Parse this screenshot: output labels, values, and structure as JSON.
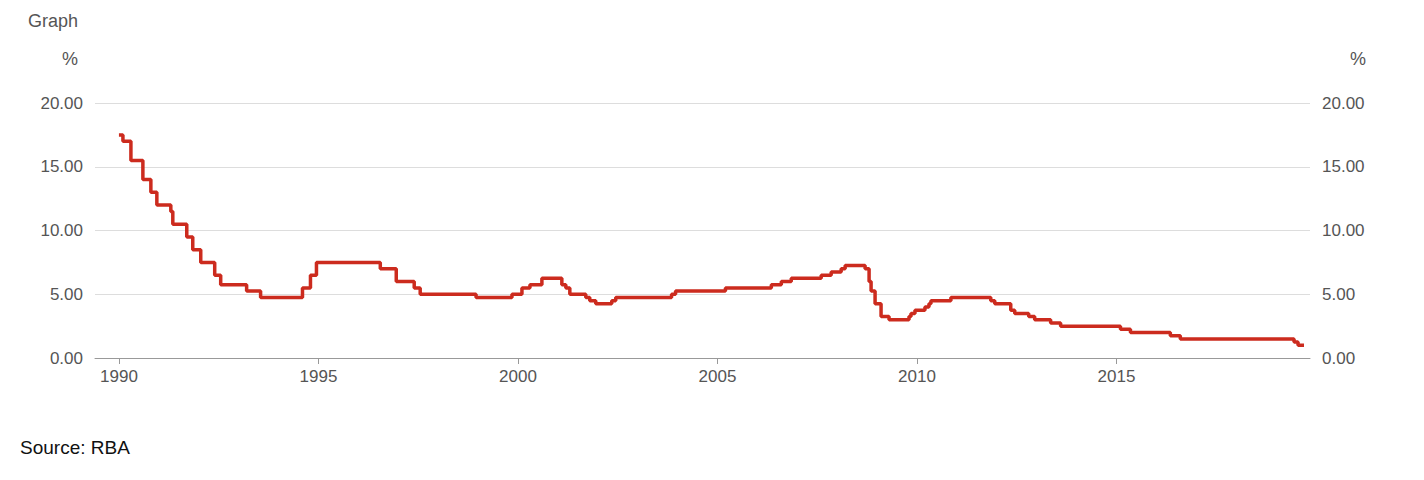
{
  "chart_data": {
    "type": "line",
    "title": "Graph",
    "ylabel": "%",
    "y2label": "%",
    "source": "Source: RBA",
    "line_style": "step",
    "color": "#cc2b1e",
    "grid": true,
    "x": [
      1990.0,
      1990.1,
      1990.3,
      1990.6,
      1990.8,
      1990.95,
      1991.3,
      1991.35,
      1991.7,
      1991.85,
      1992.05,
      1992.4,
      1992.55,
      1993.2,
      1993.55,
      1994.6,
      1994.8,
      1994.95,
      1996.55,
      1996.95,
      1997.4,
      1997.55,
      1998.95,
      1999.85,
      2000.1,
      2000.3,
      2000.6,
      2001.1,
      2001.2,
      2001.3,
      2001.7,
      2001.8,
      2001.95,
      2002.35,
      2002.45,
      2003.85,
      2003.95,
      2005.2,
      2006.35,
      2006.6,
      2006.85,
      2007.6,
      2007.85,
      2008.1,
      2008.2,
      2008.7,
      2008.8,
      2008.85,
      2008.95,
      2009.1,
      2009.3,
      2009.8,
      2009.85,
      2009.95,
      2010.2,
      2010.3,
      2010.35,
      2010.85,
      2011.85,
      2011.95,
      2012.35,
      2012.45,
      2012.8,
      2012.95,
      2013.35,
      2013.6,
      2015.1,
      2015.35,
      2016.35,
      2016.6,
      2019.45,
      2019.55,
      2019.7
    ],
    "values": [
      17.5,
      17.0,
      15.5,
      14.0,
      13.0,
      12.0,
      11.5,
      10.5,
      9.5,
      8.5,
      7.5,
      6.5,
      5.75,
      5.25,
      4.75,
      5.5,
      6.5,
      7.5,
      7.0,
      6.0,
      5.5,
      5.0,
      4.75,
      5.0,
      5.5,
      5.75,
      6.25,
      5.75,
      5.5,
      5.0,
      4.75,
      4.5,
      4.25,
      4.5,
      4.75,
      5.0,
      5.25,
      5.5,
      5.75,
      6.0,
      6.25,
      6.5,
      6.75,
      7.0,
      7.25,
      7.0,
      6.0,
      5.25,
      4.25,
      3.25,
      3.0,
      3.25,
      3.5,
      3.75,
      4.0,
      4.25,
      4.5,
      4.75,
      4.5,
      4.25,
      3.75,
      3.5,
      3.25,
      3.0,
      2.75,
      2.5,
      2.25,
      2.0,
      1.75,
      1.5,
      1.25,
      1.0,
      1.0
    ],
    "xlim": [
      1989.4,
      2019.85
    ],
    "xticks": [
      1990,
      1995,
      2000,
      2005,
      2010,
      2015
    ],
    "ylim": [
      0,
      20
    ],
    "yticks": [
      {
        "value": 0,
        "label": "0.00"
      },
      {
        "value": 5,
        "label": "5.00"
      },
      {
        "value": 10,
        "label": "10.00"
      },
      {
        "value": 15,
        "label": "15.00"
      },
      {
        "value": 20,
        "label": "20.00"
      }
    ],
    "y2lim": [
      0,
      20
    ],
    "y2ticks": [
      {
        "value": 0,
        "label": "0.00"
      },
      {
        "value": 5,
        "label": "5.00"
      },
      {
        "value": 10,
        "label": "10.00"
      },
      {
        "value": 15,
        "label": "15.00"
      },
      {
        "value": 20,
        "label": "20.00"
      }
    ]
  }
}
